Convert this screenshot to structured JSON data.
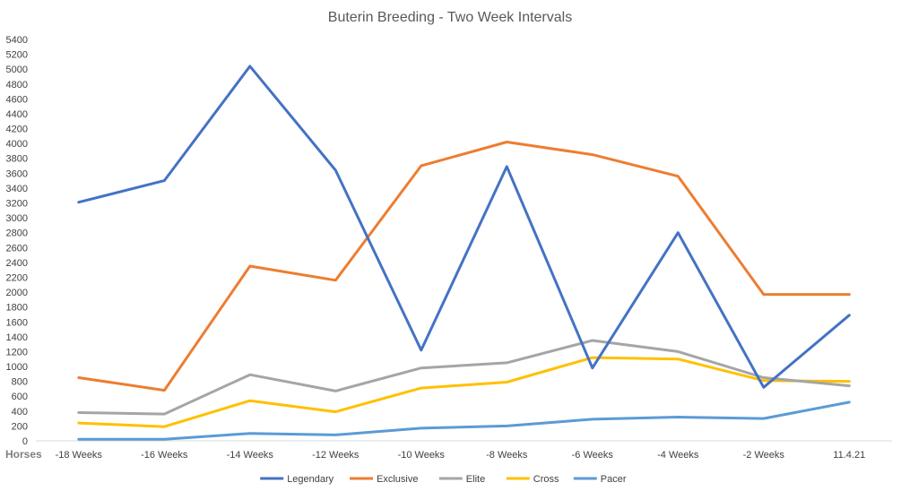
{
  "chart_data": {
    "type": "line",
    "title": "Buterin Breeding - Two Week Intervals",
    "xlabel": "Horses",
    "ylabel": "",
    "ylim": [
      0,
      5400
    ],
    "ytick_step": 200,
    "grid": false,
    "legend_position": "bottom",
    "categories": [
      "-18 Weeks",
      "-16 Weeks",
      "-14 Weeks",
      "-12 Weeks",
      "-10 Weeks",
      "-8 Weeks",
      "-6 Weeks",
      "-4 Weeks",
      "-2 Weeks",
      "11.4.21"
    ],
    "series": [
      {
        "name": "Legendary",
        "color": "#4472C4",
        "values": [
          3210,
          3500,
          5040,
          3640,
          1220,
          3690,
          980,
          2800,
          720,
          1690
        ]
      },
      {
        "name": "Exclusive",
        "color": "#ED7D31",
        "values": [
          850,
          680,
          2350,
          2160,
          3700,
          4020,
          3850,
          3560,
          1970,
          1970
        ]
      },
      {
        "name": "Elite",
        "color": "#A5A5A5",
        "values": [
          380,
          360,
          890,
          670,
          980,
          1050,
          1350,
          1200,
          850,
          740
        ]
      },
      {
        "name": "Cross",
        "color": "#FFC000",
        "values": [
          240,
          190,
          540,
          390,
          710,
          790,
          1120,
          1100,
          810,
          800
        ]
      },
      {
        "name": "Pacer",
        "color": "#5B9BD5",
        "values": [
          20,
          20,
          100,
          80,
          170,
          200,
          290,
          320,
          300,
          520
        ]
      }
    ]
  }
}
